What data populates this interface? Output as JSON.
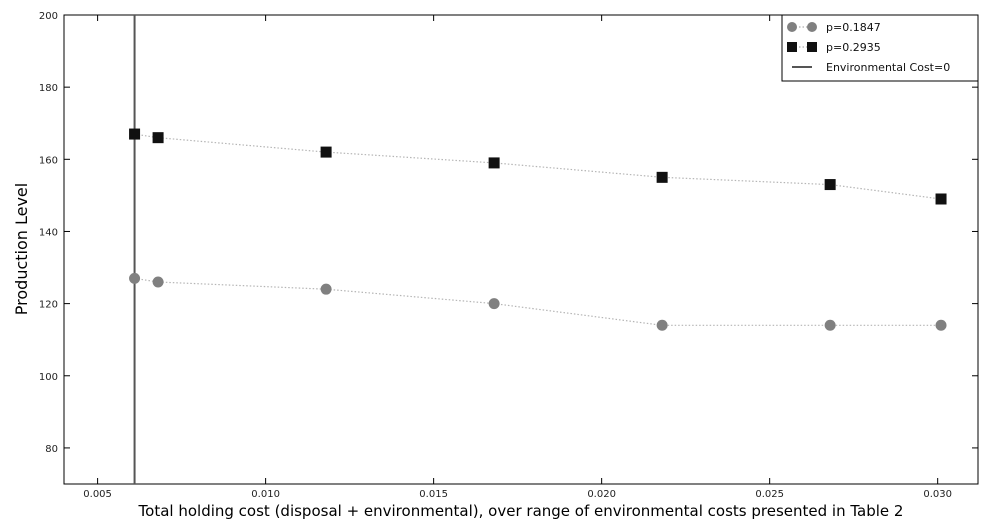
{
  "chart_data": {
    "type": "line",
    "title": "",
    "xlabel": "Total holding cost (disposal + environmental), over range of environmental costs presented in Table 2",
    "ylabel": "Production Level",
    "xlim": [
      0.004,
      0.0312
    ],
    "ylim": [
      70,
      200
    ],
    "xticks": [
      0.005,
      0.01,
      0.015,
      0.02,
      0.025,
      0.03
    ],
    "xtick_labels": [
      "0.005",
      "0.010",
      "0.015",
      "0.020",
      "0.025",
      "0.030"
    ],
    "yticks": [
      80,
      100,
      120,
      140,
      160,
      180,
      200
    ],
    "ytick_labels": [
      "80",
      "100",
      "120",
      "140",
      "160",
      "180",
      "200"
    ],
    "grid": false,
    "legend_position": "top-right",
    "series": [
      {
        "name": "p=0.1847",
        "marker": "circle",
        "color": "#808080",
        "x": [
          0.0061,
          0.0068,
          0.0118,
          0.0168,
          0.0218,
          0.0268,
          0.0301
        ],
        "y": [
          127,
          126,
          124,
          120,
          114,
          114,
          114
        ]
      },
      {
        "name": "p=0.2935",
        "marker": "square",
        "color": "#111111",
        "x": [
          0.0061,
          0.0068,
          0.0118,
          0.0168,
          0.0218,
          0.0268,
          0.0301
        ],
        "y": [
          167,
          166,
          162,
          159,
          155,
          153,
          149
        ]
      }
    ],
    "reference_line": {
      "name": "Environmental Cost=0",
      "orientation": "vertical",
      "x": 0.0061,
      "color": "#555555"
    }
  }
}
